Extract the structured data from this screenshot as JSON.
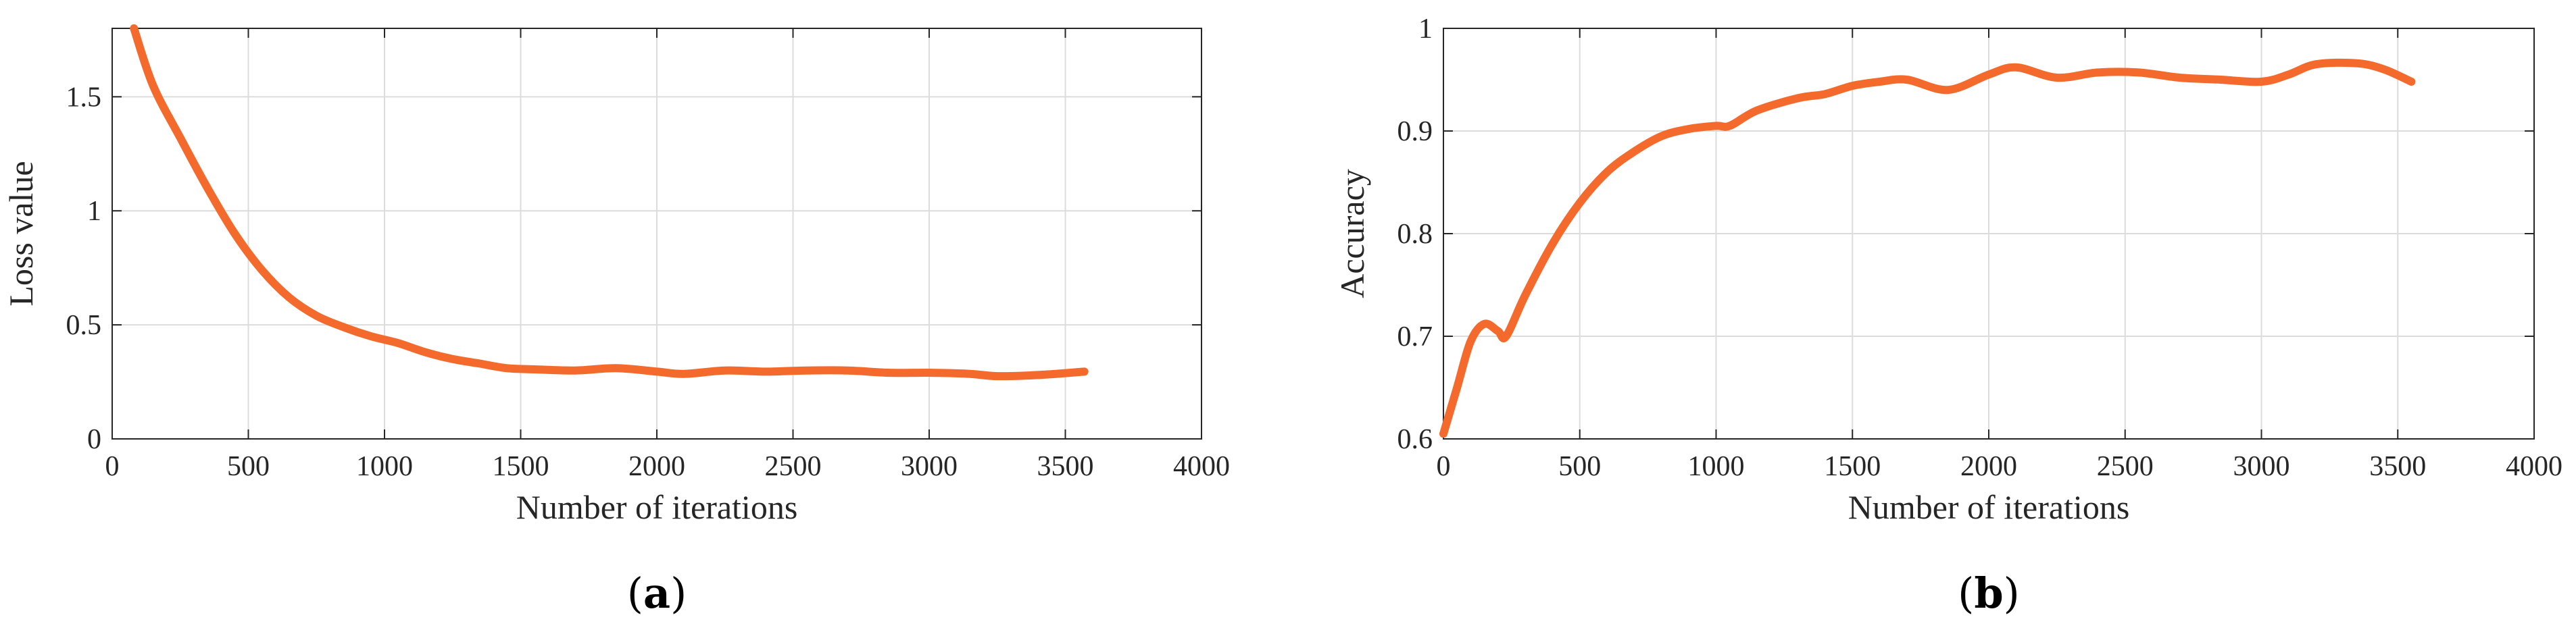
{
  "line_color": "#F46A2D",
  "chart_data": [
    {
      "type": "line",
      "panel_label": "a",
      "xlabel": "Number of iterations",
      "ylabel": "Loss value",
      "xlim": [
        0,
        4000
      ],
      "ylim": [
        0,
        1.8
      ],
      "xticks": [
        0,
        500,
        1000,
        1500,
        2000,
        2500,
        3000,
        3500,
        4000
      ],
      "xtick_labels": [
        "0",
        "500",
        "1000",
        "1500",
        "2000",
        "2500",
        "3000",
        "3500",
        "4000"
      ],
      "yticks": [
        0,
        0.5,
        1,
        1.5
      ],
      "ytick_labels": [
        "0",
        "0.5",
        "1",
        "1.5"
      ],
      "grid": true,
      "series": [
        {
          "x": [
            80,
            150,
            250,
            350,
            450,
            550,
            650,
            750,
            850,
            950,
            1050,
            1150,
            1250,
            1350,
            1450,
            1550,
            1700,
            1850,
            2000,
            2100,
            2250,
            2400,
            2550,
            2700,
            2850,
            3000,
            3150,
            3250,
            3400,
            3570
          ],
          "values": [
            1.8,
            1.55,
            1.32,
            1.1,
            0.9,
            0.74,
            0.62,
            0.54,
            0.49,
            0.45,
            0.42,
            0.38,
            0.35,
            0.33,
            0.31,
            0.305,
            0.3,
            0.31,
            0.295,
            0.285,
            0.3,
            0.295,
            0.3,
            0.3,
            0.29,
            0.29,
            0.285,
            0.275,
            0.28,
            0.295
          ]
        }
      ]
    },
    {
      "type": "line",
      "panel_label": "b",
      "xlabel": "Number of iterations",
      "ylabel": "Accuracy",
      "xlim": [
        0,
        4000
      ],
      "ylim": [
        0.6,
        1
      ],
      "xticks": [
        0,
        500,
        1000,
        1500,
        2000,
        2500,
        3000,
        3500,
        4000
      ],
      "xtick_labels": [
        "0",
        "500",
        "1000",
        "1500",
        "2000",
        "2500",
        "3000",
        "3500",
        "4000"
      ],
      "yticks": [
        0.6,
        0.7,
        0.8,
        0.9,
        1
      ],
      "ytick_labels": [
        "0.6",
        "0.7",
        "0.8",
        "0.9",
        "1"
      ],
      "grid": true,
      "series": [
        {
          "x": [
            0,
            50,
            100,
            150,
            200,
            230,
            300,
            400,
            500,
            600,
            700,
            800,
            900,
            1000,
            1050,
            1150,
            1300,
            1400,
            1500,
            1600,
            1700,
            1850,
            2000,
            2100,
            2250,
            2400,
            2550,
            2700,
            2850,
            3000,
            3100,
            3200,
            3350,
            3450,
            3550
          ],
          "values": [
            0.605,
            0.65,
            0.695,
            0.712,
            0.705,
            0.7,
            0.74,
            0.79,
            0.83,
            0.86,
            0.88,
            0.895,
            0.902,
            0.905,
            0.905,
            0.92,
            0.932,
            0.936,
            0.944,
            0.948,
            0.95,
            0.94,
            0.955,
            0.962,
            0.952,
            0.957,
            0.957,
            0.952,
            0.95,
            0.948,
            0.955,
            0.965,
            0.966,
            0.96,
            0.948
          ]
        }
      ]
    }
  ]
}
